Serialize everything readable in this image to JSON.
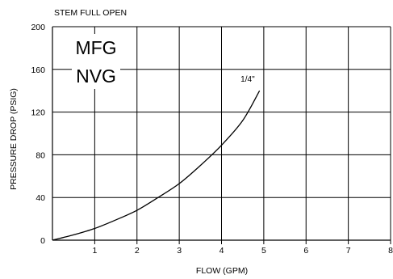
{
  "chart_data": {
    "type": "line",
    "header_note": "STEM FULL OPEN",
    "badge_lines": [
      "MFG",
      "NVG"
    ],
    "xlabel": "FLOW (GPM)",
    "ylabel": "PRESSURE DROP (PSIG)",
    "xlim": [
      0,
      8
    ],
    "ylim": [
      0,
      200
    ],
    "x_ticks": [
      1,
      2,
      3,
      4,
      5,
      6,
      7,
      8
    ],
    "y_ticks": [
      0,
      40,
      80,
      120,
      160,
      200
    ],
    "grid": true,
    "series": [
      {
        "name": "1/4\"",
        "x": [
          0,
          0.5,
          1,
          1.5,
          2,
          2.5,
          3,
          3.5,
          4,
          4.5,
          4.9
        ],
        "y": [
          0,
          5,
          11,
          19,
          28,
          40,
          53,
          70,
          89,
          112,
          140
        ]
      }
    ]
  }
}
